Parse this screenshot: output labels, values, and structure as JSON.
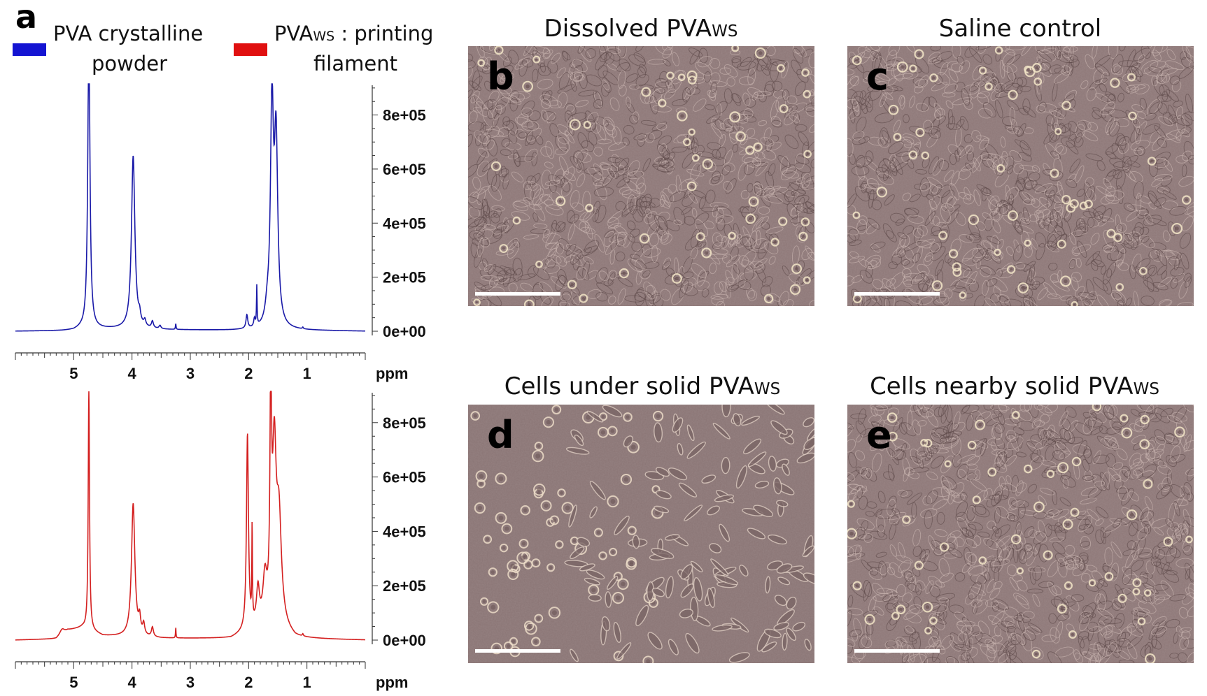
{
  "panel_a_letter": "a",
  "legend": {
    "items": [
      {
        "name_main": "PVA crystalline",
        "name_sub": "",
        "name_rest": "",
        "name_line2": "powder",
        "color": "#1414d2"
      },
      {
        "name_main": "PVA",
        "name_sub": "WS",
        "name_rest": " : printing",
        "name_line2": "filament",
        "color": "#e01010"
      }
    ]
  },
  "chart_data": [
    {
      "type": "line",
      "series": [
        {
          "name": "PVA crystalline powder",
          "color": "#1a1aa8"
        }
      ],
      "xlabel": "ppm",
      "x_ticks": [
        "5",
        "4",
        "3",
        "2",
        "1"
      ],
      "x_tick_values": [
        5,
        4,
        3,
        2,
        1
      ],
      "xlim": [
        6.0,
        0.0
      ],
      "y_ticks": [
        "0e+00",
        "2e+05",
        "4e+05",
        "6e+05",
        "8e+05"
      ],
      "y_tick_values": [
        0,
        200000,
        400000,
        600000,
        800000
      ],
      "ylim": [
        -5000,
        910000
      ],
      "baseline_points": [
        [
          6.0,
          0
        ],
        [
          5.2,
          1500
        ],
        [
          5.0,
          3000
        ],
        [
          4.88,
          9000
        ],
        [
          4.12,
          8000
        ],
        [
          3.5,
          5000
        ],
        [
          2.3,
          3000
        ],
        [
          1.4,
          5000
        ],
        [
          1.1,
          3000
        ],
        [
          0.0,
          0
        ]
      ],
      "peaks": [
        {
          "ppm": 4.74,
          "height": 1100000,
          "width": 0.022
        },
        {
          "ppm": 3.98,
          "height": 640000,
          "width": 0.035
        },
        {
          "ppm": 3.87,
          "height": 30000,
          "width": 0.02
        },
        {
          "ppm": 3.78,
          "height": 22000,
          "width": 0.02
        },
        {
          "ppm": 3.65,
          "height": 25000,
          "width": 0.02
        },
        {
          "ppm": 3.52,
          "height": 12000,
          "width": 0.02
        },
        {
          "ppm": 3.25,
          "height": 22000,
          "width": 0.006
        },
        {
          "ppm": 2.03,
          "height": 50000,
          "width": 0.018
        },
        {
          "ppm": 1.9,
          "height": 30000,
          "width": 0.015
        },
        {
          "ppm": 1.86,
          "height": 145000,
          "width": 0.006
        },
        {
          "ppm": 1.68,
          "height": 50000,
          "width": 0.04
        },
        {
          "ppm": 1.6,
          "height": 800000,
          "width": 0.03
        },
        {
          "ppm": 1.53,
          "height": 680000,
          "width": 0.035
        },
        {
          "ppm": 1.07,
          "height": 6000,
          "width": 0.01
        }
      ]
    },
    {
      "type": "line",
      "series": [
        {
          "name": "PVAWS : printing filament",
          "color": "#d42020"
        }
      ],
      "xlabel": "ppm",
      "x_ticks": [
        "5",
        "4",
        "3",
        "2",
        "1"
      ],
      "x_tick_values": [
        5,
        4,
        3,
        2,
        1
      ],
      "xlim": [
        6.0,
        0.0
      ],
      "y_ticks": [
        "0e+00",
        "2e+05",
        "4e+05",
        "6e+05",
        "8e+05"
      ],
      "y_tick_values": [
        0,
        200000,
        400000,
        600000,
        800000
      ],
      "ylim": [
        -5000,
        910000
      ],
      "baseline_points": [
        [
          6.0,
          0
        ],
        [
          5.3,
          4000
        ],
        [
          5.1,
          35000
        ],
        [
          4.85,
          45000
        ],
        [
          4.5,
          15000
        ],
        [
          4.1,
          12000
        ],
        [
          3.5,
          6000
        ],
        [
          2.3,
          5000
        ],
        [
          2.1,
          20000
        ],
        [
          1.8,
          40000
        ],
        [
          1.4,
          30000
        ],
        [
          1.2,
          5000
        ],
        [
          0.0,
          0
        ]
      ],
      "peaks": [
        {
          "ppm": 5.2,
          "height": 20000,
          "width": 0.05
        },
        {
          "ppm": 4.74,
          "height": 900000,
          "width": 0.013
        },
        {
          "ppm": 3.98,
          "height": 490000,
          "width": 0.035
        },
        {
          "ppm": 3.87,
          "height": 55000,
          "width": 0.02
        },
        {
          "ppm": 3.8,
          "height": 40000,
          "width": 0.02
        },
        {
          "ppm": 3.65,
          "height": 35000,
          "width": 0.02
        },
        {
          "ppm": 3.25,
          "height": 40000,
          "width": 0.005
        },
        {
          "ppm": 2.02,
          "height": 720000,
          "width": 0.02
        },
        {
          "ppm": 1.94,
          "height": 350000,
          "width": 0.006
        },
        {
          "ppm": 1.84,
          "height": 130000,
          "width": 0.03
        },
        {
          "ppm": 1.72,
          "height": 160000,
          "width": 0.04
        },
        {
          "ppm": 1.62,
          "height": 860000,
          "width": 0.015
        },
        {
          "ppm": 1.56,
          "height": 620000,
          "width": 0.04
        },
        {
          "ppm": 1.48,
          "height": 380000,
          "width": 0.05
        },
        {
          "ppm": 1.07,
          "height": 8000,
          "width": 0.01
        }
      ]
    }
  ],
  "micrographs": [
    {
      "letter": "b",
      "title_main": "Dissolved PVA",
      "title_sub": "WS",
      "scene": "confluent",
      "seed": 11
    },
    {
      "letter": "c",
      "title_main": "Saline control",
      "title_sub": "",
      "scene": "confluent",
      "seed": 23
    },
    {
      "letter": "d",
      "title_main": "Cells under solid PVA",
      "title_sub": "WS",
      "scene": "sparse",
      "seed": 37
    },
    {
      "letter": "e",
      "title_main": "Cells nearby solid PVA",
      "title_sub": "WS",
      "scene": "confluent",
      "seed": 51
    }
  ],
  "colors": {
    "micrograph_background": "#8e7878",
    "sparse_background": "#8a7575",
    "scale_bar": "#ffffff",
    "axis": "#333333"
  }
}
